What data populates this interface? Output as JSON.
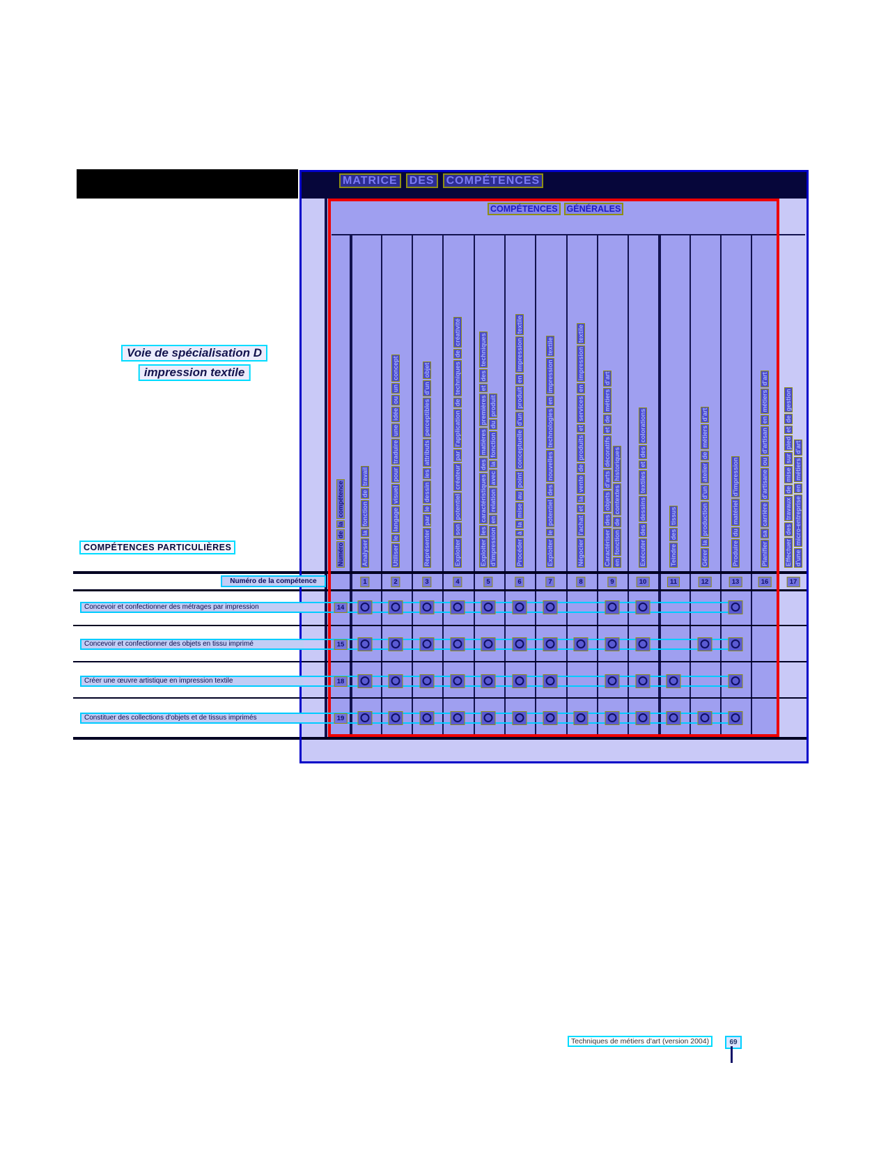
{
  "page": {
    "title_words": [
      "MATRICE",
      "DES",
      "COMPÉTENCES"
    ],
    "general_words": [
      "COMPÉTENCES",
      "GÉNÉRALES"
    ],
    "specialization_line1": "Voie de spécialisation D",
    "specialization_line2": "impression textile",
    "particular_competencies_label": "COMPÉTENCES PARTICULIÈRES",
    "number_row_label": "Numéro de la compétence"
  },
  "matrix": {
    "number_column_header": "Numéro de la compétence",
    "general_columns": [
      {
        "num": "1",
        "lines": [
          "Analyser la fonction de travail"
        ]
      },
      {
        "num": "2",
        "lines": [
          "Utiliser le langage visuel pour traduire une idée ou un concept"
        ]
      },
      {
        "num": "3",
        "lines": [
          "Représenter par le dessin les attributs perceptibles d'un objet"
        ]
      },
      {
        "num": "4",
        "lines": [
          "Exploiter son potentiel créateur par l'application de techniques de créativité"
        ]
      },
      {
        "num": "5",
        "lines": [
          "Exploiter les caractéristiques des matières premières et des techniques",
          "d'impression en relation avec la fonction du produit"
        ]
      },
      {
        "num": "6",
        "lines": [
          "Procéder à la mise au point conceptuelle d'un produit en impression textile"
        ]
      },
      {
        "num": "7",
        "lines": [
          "Exploiter le potentiel des nouvelles technologies en impression textile"
        ]
      },
      {
        "num": "8",
        "lines": [
          "Négocier l'achat et la vente de produits et services en impression textile"
        ]
      },
      {
        "num": "9",
        "lines": [
          "Caractériser des objets d'arts décoratifs et de métiers d'art",
          "en fonction de contextes historiques"
        ]
      },
      {
        "num": "10",
        "lines": [
          "Exécuter des dessins textiles et des colorations"
        ]
      },
      {
        "num": "11",
        "lines": [
          "Teindre des tissus"
        ]
      },
      {
        "num": "12",
        "lines": [
          "Gérer la production d'un atelier de métiers d'art"
        ]
      },
      {
        "num": "13",
        "lines": [
          "Produire du matériel d'impression"
        ]
      },
      {
        "num": "16",
        "lines": [
          "Planifier sa carrière d'artisane ou d'artisan en métiers d'art"
        ]
      },
      {
        "num": "17",
        "lines": [
          "Effectuer des travaux de mise sur pied et de gestion",
          "d'une micro-entreprise en métiers d'art"
        ]
      }
    ],
    "particular_rows": [
      {
        "num": "14",
        "label": "Concevoir et confectionner des métrages par impression",
        "marks": [
          1,
          2,
          3,
          4,
          5,
          6,
          7,
          9,
          10,
          13
        ]
      },
      {
        "num": "15",
        "label": "Concevoir et confectionner des objets en tissu imprimé",
        "marks": [
          1,
          2,
          3,
          4,
          5,
          6,
          7,
          8,
          9,
          10,
          12,
          13
        ]
      },
      {
        "num": "18",
        "label": "Créer une œuvre artistique en impression textile",
        "marks": [
          1,
          2,
          3,
          4,
          5,
          6,
          7,
          9,
          10,
          11,
          13
        ]
      },
      {
        "num": "19",
        "label": "Constituer des collections d'objets et de tissus imprimés",
        "marks": [
          1,
          2,
          3,
          4,
          5,
          6,
          7,
          8,
          9,
          10,
          11,
          12,
          13
        ]
      }
    ]
  },
  "footer": {
    "doc_label": "Techniques de métiers d'art (version 2004)",
    "page": "69"
  },
  "colors": {
    "red_box": "#ee0000",
    "container_border": "#0000c8",
    "title_band": "#06063a",
    "lavender": "#9f9ff0",
    "light_lavender": "#c9c9f7",
    "highlight_cyan": "#00ccff",
    "ocr_box_olive": "#8f8f12"
  }
}
